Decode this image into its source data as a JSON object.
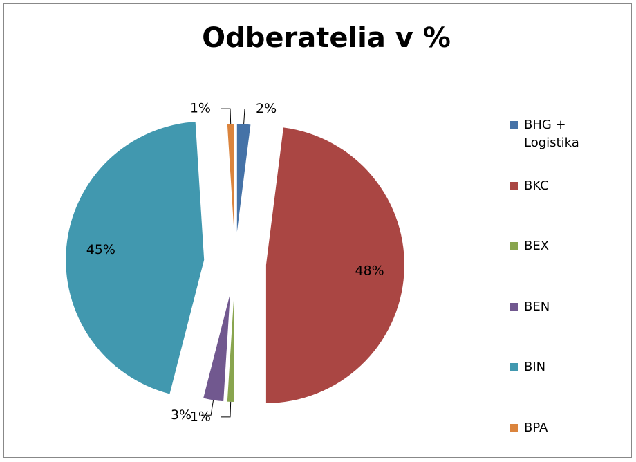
{
  "chart_data": {
    "type": "pie",
    "title": "Odberatelia v %",
    "categories": [
      "BHG + Logistika",
      "BKC",
      "BEX",
      "BEN",
      "BIN",
      "BPA"
    ],
    "values": [
      2,
      48,
      1,
      3,
      45,
      1
    ],
    "value_labels": [
      "2%",
      "48%",
      "1%",
      "3%",
      "45%",
      "1%"
    ],
    "colors": [
      "#4572a7",
      "#aa4643",
      "#89a54e",
      "#71588f",
      "#4198af",
      "#db843d"
    ],
    "legend": "right"
  }
}
